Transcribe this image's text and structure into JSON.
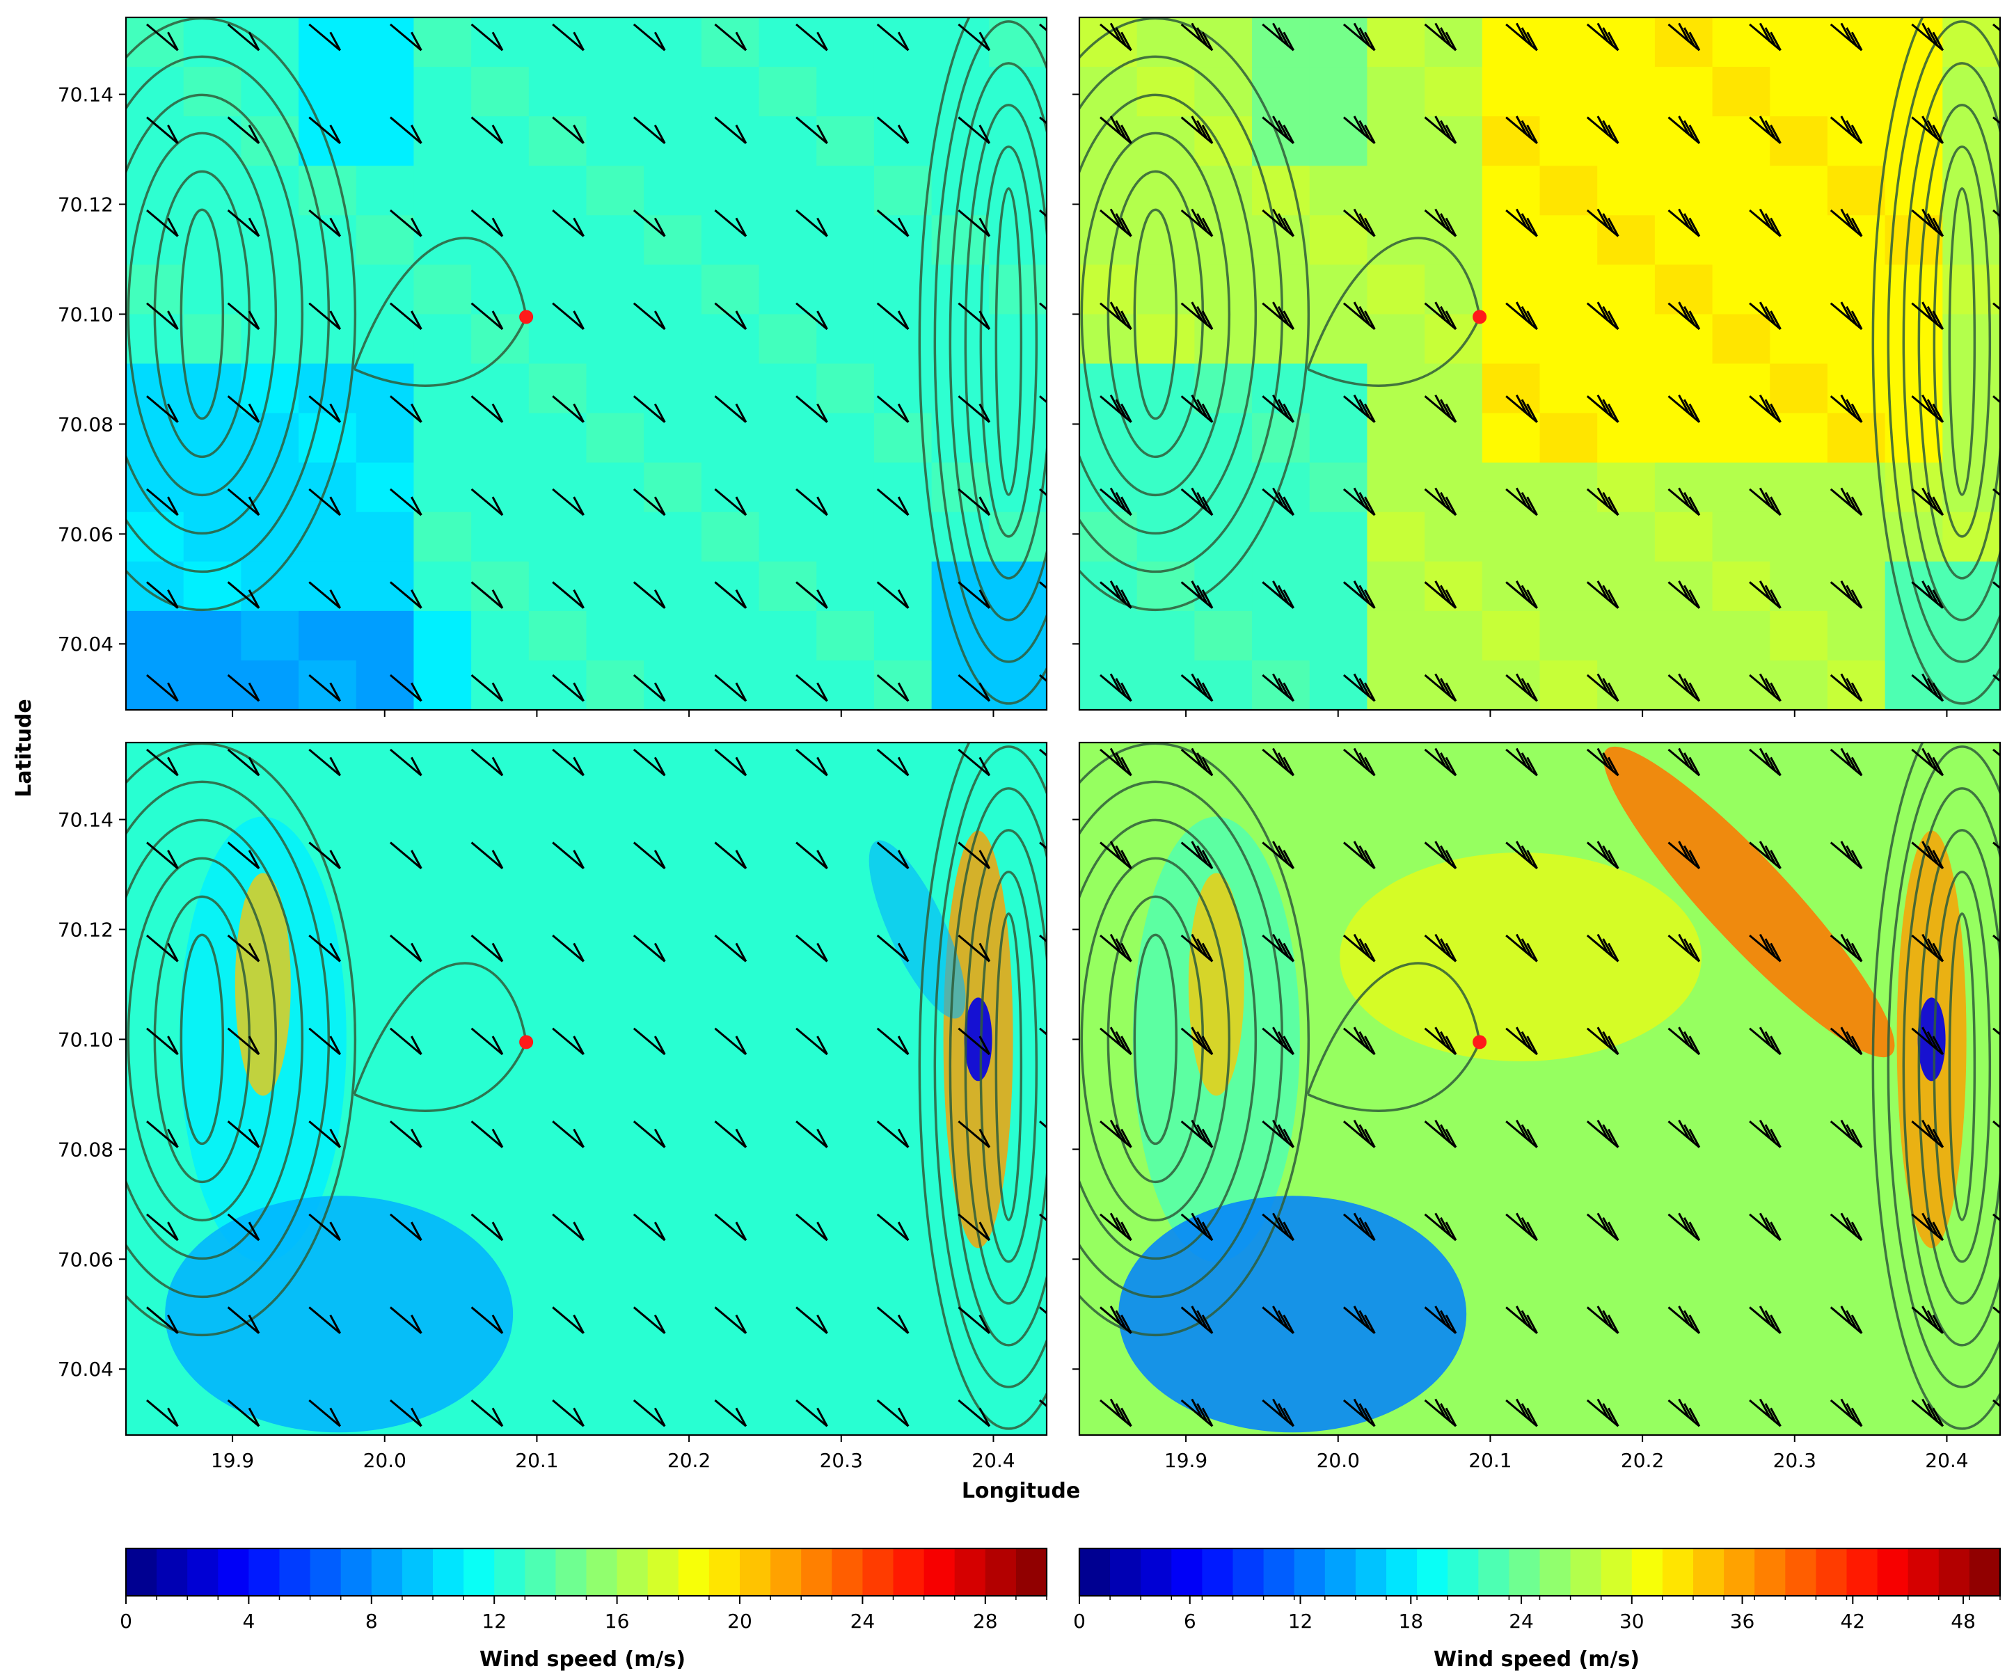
{
  "figure": {
    "xlabel": "Longitude",
    "ylabel": "Latitude",
    "marker_color": "#ff1a1a",
    "contour_color": "#2f5d3a",
    "barb_color": "#000000"
  },
  "chart_data": [
    {
      "type": "heatmap",
      "panel": "top-left",
      "xlim": [
        19.83,
        20.435
      ],
      "ylim": [
        70.028,
        70.154
      ],
      "x_ticks": [],
      "y_ticks": [
        "70.04",
        "70.06",
        "70.08",
        "70.10",
        "70.12",
        "70.14"
      ],
      "colorbar": "left",
      "marker": {
        "x": 20.093,
        "y": 70.0995
      },
      "barb_feathers": 1,
      "field": "coarse"
    },
    {
      "type": "heatmap",
      "panel": "top-right",
      "xlim": [
        19.83,
        20.435
      ],
      "ylim": [
        70.028,
        70.154
      ],
      "x_ticks": [],
      "y_ticks": [],
      "colorbar": "right",
      "marker": {
        "x": 20.093,
        "y": 70.0995
      },
      "barb_feathers": 3,
      "field": "coarse"
    },
    {
      "type": "heatmap",
      "panel": "bottom-left",
      "xlim": [
        19.83,
        20.435
      ],
      "ylim": [
        70.028,
        70.154
      ],
      "x_ticks": [
        "19.9",
        "20.0",
        "20.1",
        "20.2",
        "20.3",
        "20.4"
      ],
      "y_ticks": [
        "70.04",
        "70.06",
        "70.08",
        "70.10",
        "70.12",
        "70.14"
      ],
      "colorbar": "left",
      "marker": {
        "x": 20.093,
        "y": 70.0995
      },
      "barb_feathers": 1,
      "field": "fine"
    },
    {
      "type": "heatmap",
      "panel": "bottom-right",
      "xlim": [
        19.83,
        20.435
      ],
      "ylim": [
        70.028,
        70.154
      ],
      "x_ticks": [
        "19.9",
        "20.0",
        "20.1",
        "20.2",
        "20.3",
        "20.4"
      ],
      "y_ticks": [],
      "colorbar": "right",
      "marker": {
        "x": 20.093,
        "y": 70.0995
      },
      "barb_feathers": 3,
      "field": "fine"
    }
  ],
  "colorbars": {
    "left": {
      "label": "Wind speed (m/s)",
      "min": 0,
      "max": 30,
      "levels": 30,
      "ticks": [
        0,
        4,
        8,
        12,
        16,
        20,
        24,
        28
      ],
      "tick_labels": [
        "0",
        "4",
        "8",
        "12",
        "16",
        "20",
        "24",
        "28"
      ]
    },
    "right": {
      "label": "Wind speed (m/s)",
      "min": 0,
      "max": 50,
      "levels": 30,
      "ticks": [
        0,
        6,
        12,
        18,
        24,
        30,
        36,
        42,
        48
      ],
      "tick_labels": [
        "0",
        "6",
        "12",
        "18",
        "24",
        "30",
        "36",
        "42",
        "48"
      ]
    }
  }
}
